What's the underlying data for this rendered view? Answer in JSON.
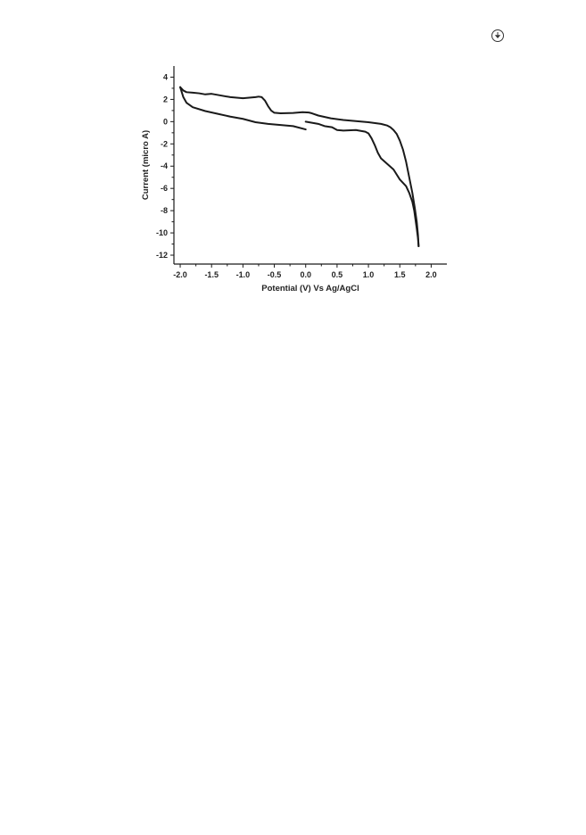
{
  "page": {
    "corner_icon": "circled-arrow-icon"
  },
  "chart_data": {
    "type": "line",
    "title": "",
    "xlabel": "Potential (V) Vs Ag/AgCl",
    "ylabel": "Current (micro A)",
    "xlim": [
      -2.1,
      2.25
    ],
    "ylim": [
      -12.8,
      5.0
    ],
    "x_ticks": [
      -2.0,
      -1.5,
      -1.0,
      -0.5,
      0.0,
      0.5,
      1.0,
      1.5,
      2.0
    ],
    "x_tick_labels": [
      "-2.0",
      "-1.5",
      "-1.0",
      "-0.5",
      "0.0",
      "0.5",
      "1.0",
      "1.5",
      "2.0"
    ],
    "y_ticks": [
      4,
      2,
      0,
      -2,
      -4,
      -6,
      -8,
      -10,
      -12
    ],
    "y_tick_labels": [
      "4",
      "2",
      "0",
      "-2",
      "-4",
      "-6",
      "-8",
      "-10",
      "-12"
    ],
    "grid": false,
    "legend": "none",
    "line_color": "#1a1a1a",
    "series": [
      {
        "x": [
          0.0,
          0.2,
          0.3,
          0.42,
          0.5,
          0.6,
          0.8,
          0.95,
          1.0,
          1.05,
          1.1,
          1.15,
          1.2,
          1.3,
          1.4,
          1.5,
          1.6,
          1.65,
          1.7,
          1.73,
          1.75,
          1.77,
          1.79,
          1.8
        ],
        "y": [
          0.0,
          -0.2,
          -0.4,
          -0.5,
          -0.75,
          -0.8,
          -0.75,
          -0.9,
          -1.05,
          -1.5,
          -2.1,
          -2.8,
          -3.3,
          -3.8,
          -4.3,
          -5.2,
          -5.8,
          -6.4,
          -7.2,
          -8.0,
          -8.8,
          -9.6,
          -10.5,
          -11.2
        ]
      },
      {
        "x": [
          1.8,
          1.79,
          1.77,
          1.74,
          1.7,
          1.65,
          1.6,
          1.55,
          1.5,
          1.45,
          1.4,
          1.35,
          1.3,
          1.2,
          1.0,
          0.8,
          0.6,
          0.4,
          0.2,
          0.1,
          0.05,
          -0.05,
          -0.2,
          -0.4,
          -0.5,
          -0.55,
          -0.6,
          -0.65,
          -0.7,
          -0.75,
          -0.8,
          -0.9,
          -1.0,
          -1.1,
          -1.2,
          -1.4,
          -1.5,
          -1.6,
          -1.7,
          -1.8,
          -1.9,
          -1.95,
          -2.0
        ],
        "y": [
          -11.2,
          -10.2,
          -9.0,
          -7.8,
          -6.4,
          -5.0,
          -3.6,
          -2.5,
          -1.7,
          -1.1,
          -0.75,
          -0.5,
          -0.35,
          -0.2,
          -0.05,
          0.05,
          0.15,
          0.3,
          0.55,
          0.75,
          0.82,
          0.85,
          0.78,
          0.75,
          0.8,
          1.0,
          1.4,
          1.9,
          2.2,
          2.25,
          2.2,
          2.15,
          2.1,
          2.15,
          2.2,
          2.4,
          2.5,
          2.45,
          2.55,
          2.6,
          2.65,
          2.8,
          3.1
        ]
      },
      {
        "x": [
          -2.0,
          -1.95,
          -1.9,
          -1.8,
          -1.6,
          -1.4,
          -1.2,
          -1.0,
          -0.8,
          -0.6,
          -0.4,
          -0.2,
          0.0
        ],
        "y": [
          3.1,
          2.2,
          1.7,
          1.3,
          0.95,
          0.7,
          0.45,
          0.25,
          -0.05,
          -0.2,
          -0.3,
          -0.4,
          -0.7
        ]
      }
    ]
  }
}
